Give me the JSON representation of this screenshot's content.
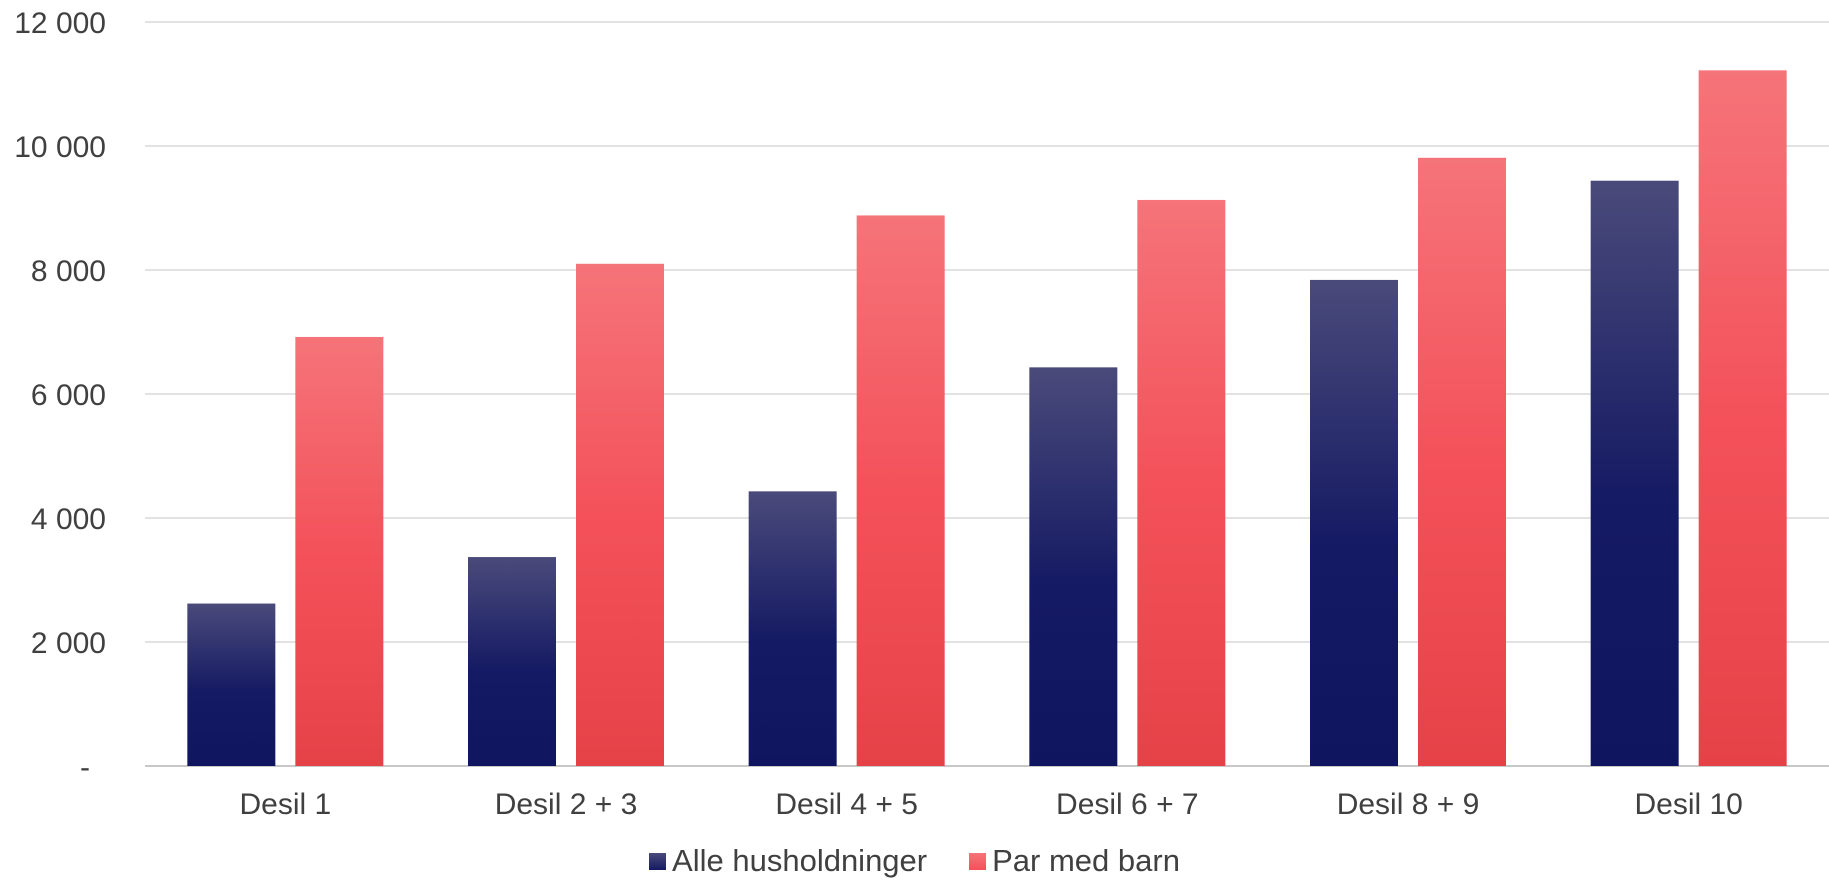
{
  "chart_data": {
    "type": "bar",
    "categories": [
      "Desil 1",
      "Desil 2 + 3",
      "Desil 4 + 5",
      "Desil 6 + 7",
      "Desil 8 + 9",
      "Desil 10"
    ],
    "series": [
      {
        "name": "Alle husholdninger",
        "color": "#141a63",
        "values": [
          2620,
          3370,
          4430,
          6430,
          7840,
          9440
        ]
      },
      {
        "name": "Par med barn",
        "color": "#f4515a",
        "values": [
          6920,
          8100,
          8880,
          9130,
          9810,
          11220
        ]
      }
    ],
    "yticks": [
      "-",
      "2 000",
      "4 000",
      "6 000",
      "8 000",
      "10 000",
      "12 000"
    ],
    "ylim": [
      0,
      12000
    ],
    "grid": true,
    "legend_position": "bottom"
  }
}
